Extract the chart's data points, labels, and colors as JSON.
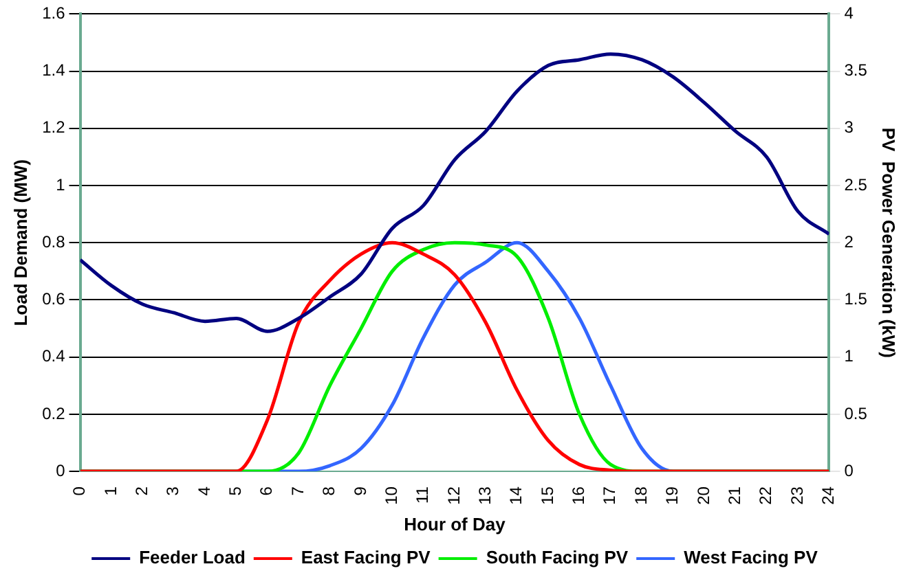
{
  "chart_data": {
    "type": "line",
    "xlabel": "Hour of Day",
    "ylabel": "Load Demand (MW)",
    "y2label": "PV  Power Generation (kW)",
    "xlim": [
      0,
      24
    ],
    "xticks": [
      0,
      1,
      2,
      3,
      4,
      5,
      6,
      7,
      8,
      9,
      10,
      11,
      12,
      13,
      14,
      15,
      16,
      17,
      18,
      19,
      20,
      21,
      22,
      23,
      24
    ],
    "ylim": [
      0,
      1.6
    ],
    "yticks": [
      0,
      0.2,
      0.4,
      0.6,
      0.8,
      1,
      1.2,
      1.4,
      1.6
    ],
    "y2lim": [
      0,
      4
    ],
    "y2ticks": [
      0,
      0.5,
      1,
      1.5,
      2,
      2.5,
      3,
      3.5,
      4
    ],
    "grid": "y",
    "legend": "bottom",
    "marker": "none",
    "line_style": "solid",
    "series": [
      {
        "name": "Feeder Load",
        "color": "#000080",
        "x": [
          0,
          1,
          2,
          3,
          4,
          5,
          6,
          7,
          8,
          9,
          10,
          11,
          12,
          13,
          14,
          15,
          16,
          17,
          18,
          19,
          20,
          21,
          22,
          23,
          24
        ],
        "values": [
          0.74,
          0.65,
          0.585,
          0.555,
          0.525,
          0.535,
          0.49,
          0.535,
          0.61,
          0.69,
          0.85,
          0.93,
          1.09,
          1.19,
          1.33,
          1.42,
          1.44,
          1.46,
          1.44,
          1.38,
          1.29,
          1.19,
          1.1,
          0.91,
          0.83
        ]
      },
      {
        "name": "East Facing PV",
        "color": "#ff0000",
        "axis": "y2",
        "x": [
          0,
          5,
          6,
          7,
          8,
          9,
          10,
          11,
          12,
          13,
          14,
          15,
          16,
          17,
          18,
          24
        ],
        "values": [
          0,
          0,
          0.45,
          1.3,
          1.67,
          1.9,
          2,
          1.9,
          1.72,
          1.3,
          0.71,
          0.27,
          0.06,
          0.01,
          0,
          0
        ]
      },
      {
        "name": "South Facing PV",
        "color": "#00ee00",
        "axis": "y2",
        "x": [
          0,
          6,
          7,
          8,
          9,
          10,
          11,
          12,
          13,
          14,
          15,
          16,
          17,
          18,
          24
        ],
        "values": [
          0,
          0,
          0.16,
          0.75,
          1.25,
          1.75,
          1.94,
          2,
          1.98,
          1.88,
          1.34,
          0.5,
          0.06,
          0,
          0
        ]
      },
      {
        "name": "West Facing PV",
        "color": "#3366ff",
        "axis": "y2",
        "x": [
          0,
          7,
          8,
          9,
          10,
          11,
          12,
          13,
          14,
          15,
          16,
          17,
          18,
          19,
          24
        ],
        "values": [
          0,
          0,
          0.05,
          0.2,
          0.58,
          1.17,
          1.63,
          1.83,
          2,
          1.75,
          1.34,
          0.75,
          0.2,
          0,
          0
        ]
      }
    ]
  }
}
